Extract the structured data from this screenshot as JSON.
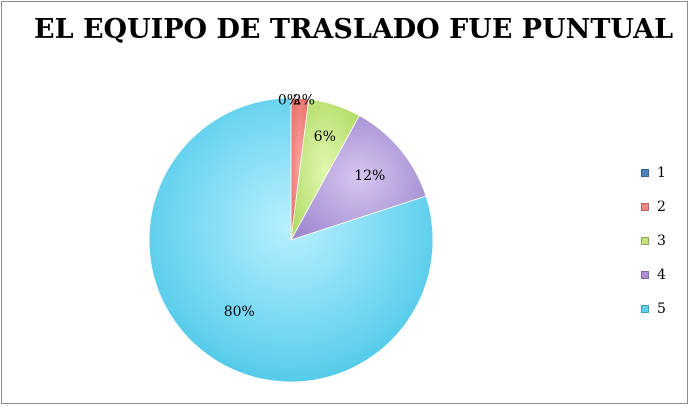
{
  "chart_data": {
    "type": "pie",
    "title": "EL EQUIPO DE TRASLADO FUE PUNTUAL",
    "categories": [
      "1",
      "2",
      "3",
      "4",
      "5"
    ],
    "values": [
      0,
      2,
      6,
      12,
      80
    ],
    "data_labels": [
      "0%",
      "2%",
      "6%",
      "12%",
      "80%"
    ],
    "colors": [
      "#4f81bd",
      "#f08784",
      "#bfe27a",
      "#a98fd3",
      "#5fd0ec"
    ],
    "legend_position": "right"
  }
}
